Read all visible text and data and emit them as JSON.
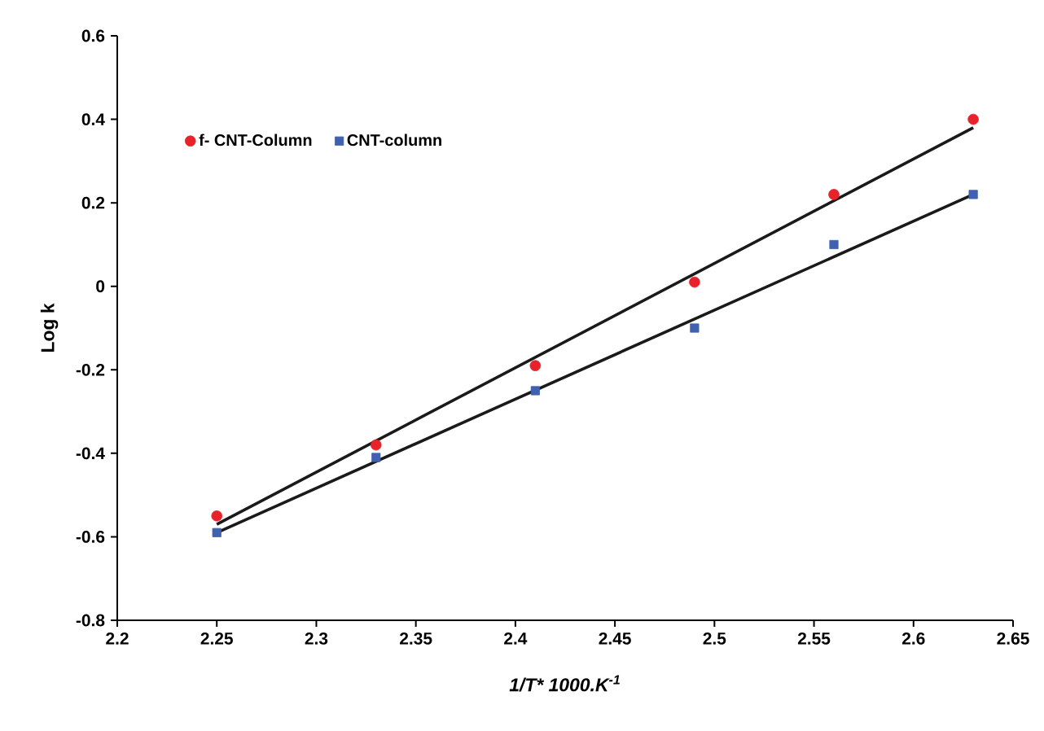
{
  "chart_data": {
    "type": "scatter",
    "xlabel": "1/T* 1000.K$^{-1}$",
    "ylabel": "Log k",
    "xlim": [
      2.2,
      2.65
    ],
    "xticks": [
      2.2,
      2.25,
      2.3,
      2.35,
      2.4,
      2.45,
      2.5,
      2.55,
      2.6,
      2.65
    ],
    "ylim": [
      -0.8,
      0.6
    ],
    "yticks": [
      -0.8,
      -0.6,
      -0.4,
      -0.2,
      0,
      0.2,
      0.4,
      0.6
    ],
    "grid": false,
    "legend": "top left",
    "series": [
      {
        "name": "f- CNT-Column",
        "color": "#e8222a",
        "marker": "circle",
        "x": [
          2.25,
          2.33,
          2.41,
          2.49,
          2.56,
          2.63
        ],
        "values": [
          -0.55,
          -0.38,
          -0.19,
          0.01,
          0.22,
          0.4
        ]
      },
      {
        "name": "CNT-column",
        "color": "#4060b0",
        "marker": "square",
        "x": [
          2.25,
          2.33,
          2.41,
          2.49,
          2.56,
          2.63
        ],
        "values": [
          -0.59,
          -0.41,
          -0.25,
          -0.1,
          0.1,
          0.22
        ]
      },
      {
        "type": "line",
        "color": "#1a1a1a",
        "marker": "none",
        "x": [
          2.25,
          2.63
        ],
        "values": [
          -0.57,
          0.38
        ]
      },
      {
        "type": "line",
        "color": "#1a1a1a",
        "marker": "none",
        "x": [
          2.25,
          2.63
        ],
        "values": [
          -0.59,
          0.22
        ]
      }
    ]
  }
}
